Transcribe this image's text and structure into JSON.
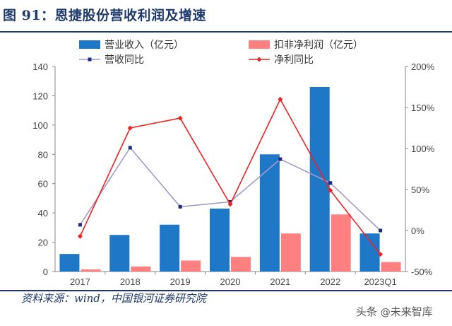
{
  "title": "图 91：恩捷股份营收利润及增速",
  "source": "资料来源：wind，中国银河证券研究院",
  "watermark": {
    "prefix": "头条",
    "handle": "未来智库",
    "icon": "at-icon"
  },
  "colors": {
    "revenue_bar": "#1f77c8",
    "profit_bar": "#ff8080",
    "revenue_growth_line": "#a09cc8",
    "revenue_growth_marker": "#1f2a80",
    "profit_growth_line": "#ee2222",
    "axis_text": "#444444",
    "title": "#1f3a6b"
  },
  "chart_data": {
    "type": "bar",
    "categories": [
      "2017",
      "2018",
      "2019",
      "2020",
      "2021",
      "2022",
      "2023Q1"
    ],
    "series": [
      {
        "name": "营业收入（亿元）",
        "kind": "bar",
        "axis": "left",
        "values": [
          12,
          25,
          32,
          43,
          80,
          126,
          26
        ]
      },
      {
        "name": "扣非净利润（亿元）",
        "kind": "bar",
        "axis": "left",
        "values": [
          1.5,
          3.5,
          7.5,
          10,
          26,
          39,
          6.5
        ]
      },
      {
        "name": "营收同比",
        "kind": "line",
        "axis": "right",
        "values": [
          7,
          101,
          29,
          35,
          87,
          58,
          0
        ]
      },
      {
        "name": "净利同比",
        "kind": "line",
        "axis": "right",
        "values": [
          -7,
          125,
          137,
          32,
          160,
          49,
          -29
        ]
      }
    ],
    "y_left": {
      "min": 0,
      "max": 140,
      "ticks": [
        "0",
        "20",
        "40",
        "60",
        "80",
        "100",
        "120",
        "140"
      ]
    },
    "y_right": {
      "min": -50,
      "max": 200,
      "ticks": [
        "-50%",
        "0%",
        "50%",
        "100%",
        "150%",
        "200%"
      ]
    },
    "xlabel": "",
    "ylabel": "",
    "legend": "top",
    "grid": false
  }
}
